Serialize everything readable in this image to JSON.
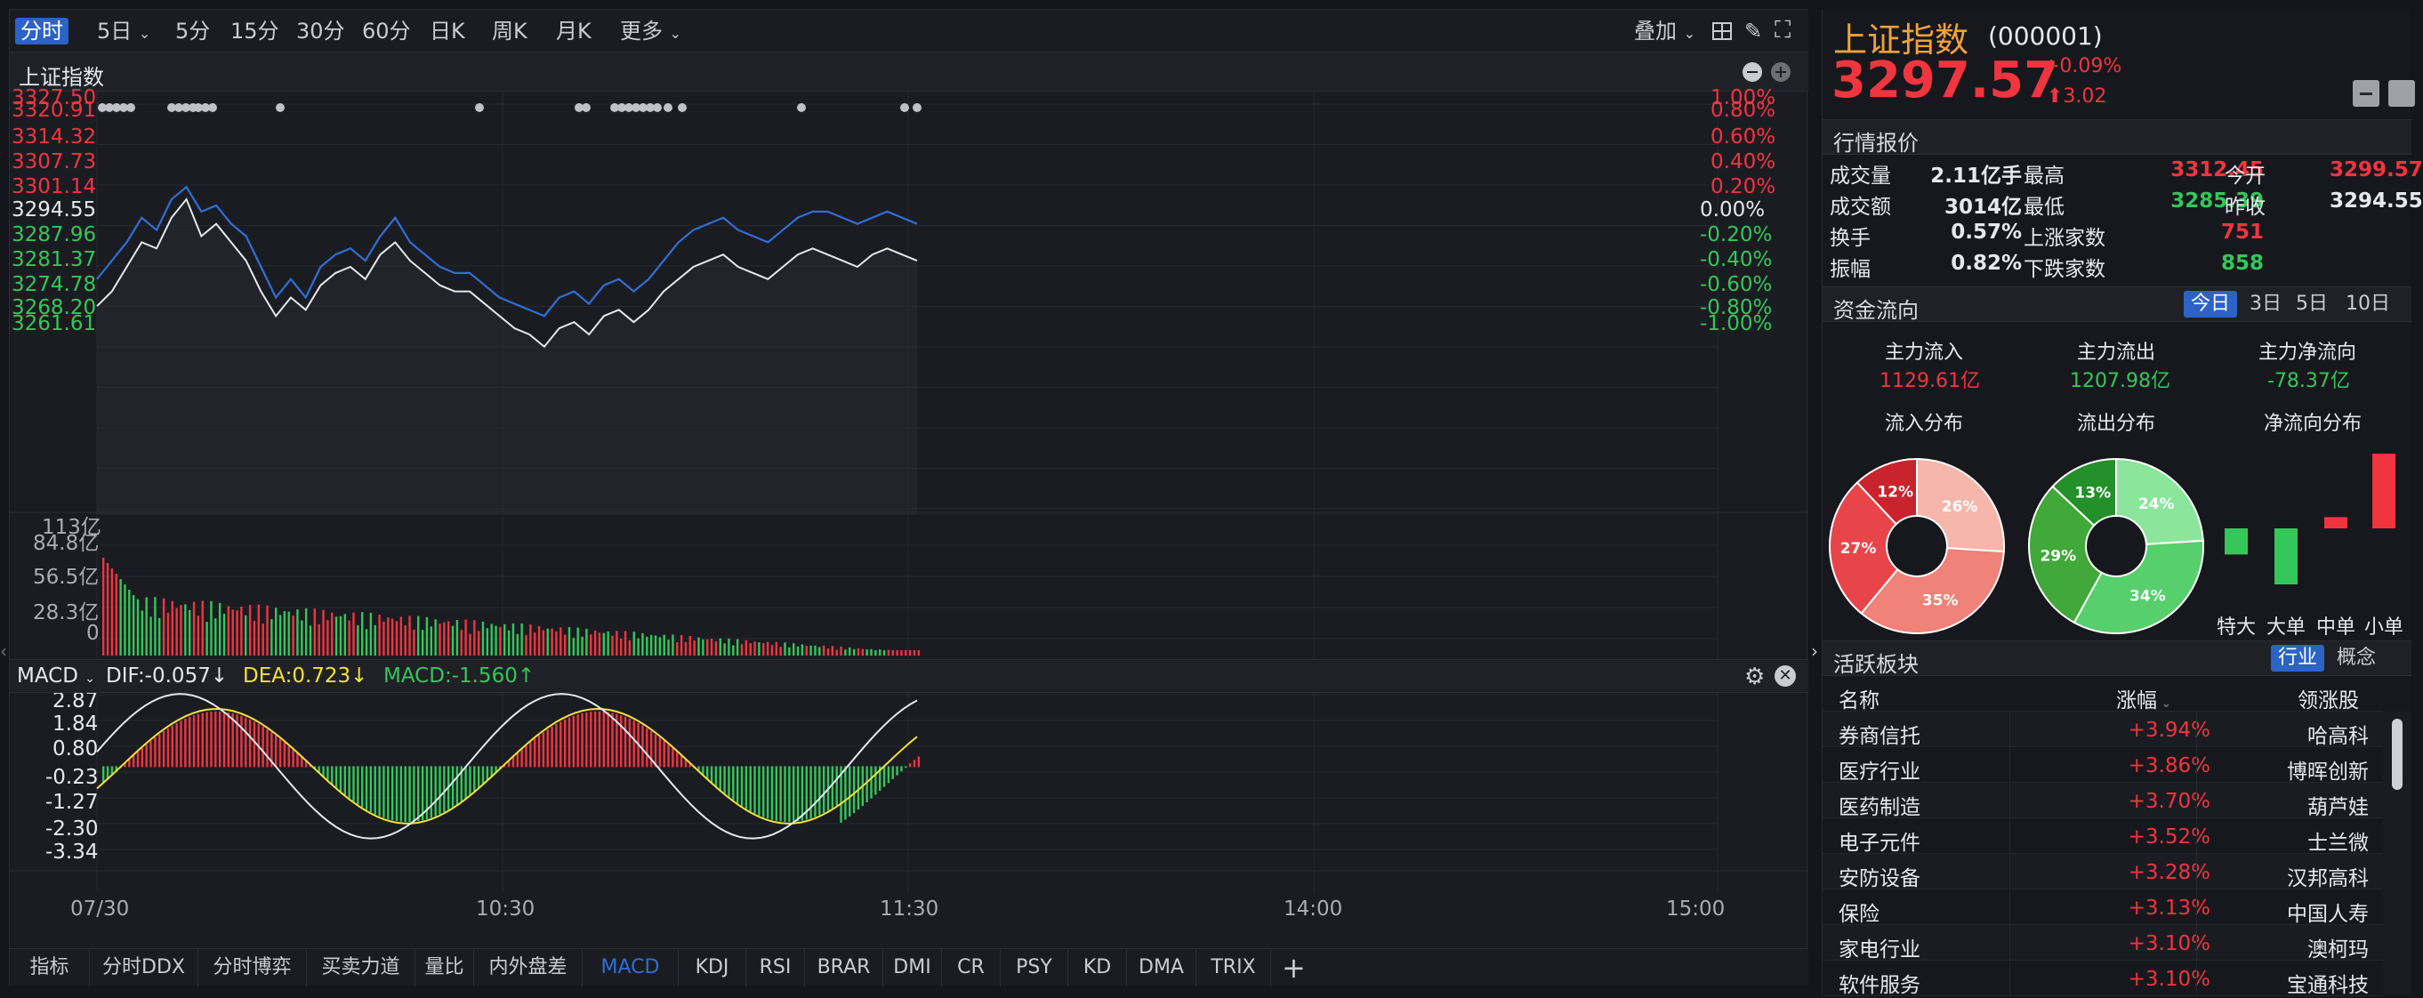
{
  "toolbar": {
    "timeframes": [
      "分时",
      "5日",
      "5分",
      "15分",
      "30分",
      "60分",
      "日K",
      "周K",
      "月K",
      "更多"
    ],
    "active": "分时",
    "overlay_label": "叠加"
  },
  "index": {
    "name": "上证指数"
  },
  "price_axis": {
    "left": [
      "3327.50",
      "3320.91",
      "3314.32",
      "3307.73",
      "3301.14",
      "3294.55",
      "3287.96",
      "3281.37",
      "3274.78",
      "3268.20",
      "3261.61"
    ],
    "right": [
      "1.00%",
      "0.80%",
      "0.60%",
      "0.40%",
      "0.20%",
      "0.00%",
      "-0.20%",
      "-0.40%",
      "-0.60%",
      "-0.80%",
      "-1.00%"
    ]
  },
  "volume_axis": [
    "113亿",
    "84.8亿",
    "56.5亿",
    "28.3亿",
    "0"
  ],
  "macd": {
    "label": "MACD",
    "dif": "DIF:-0.057↓",
    "dea": "DEA:0.723↓",
    "macd": "MACD:-1.560↑",
    "axis": [
      "2.87",
      "1.84",
      "0.80",
      "-0.23",
      "-1.27",
      "-2.30",
      "-3.34"
    ]
  },
  "time_axis": [
    "07/30",
    "10:30",
    "11:30",
    "14:00",
    "15:00"
  ],
  "bottom_tabs": [
    "指标",
    "分时DDX",
    "分时博弈",
    "买卖力道",
    "量比",
    "内外盘差",
    "MACD",
    "KDJ",
    "RSI",
    "BRAR",
    "DMI",
    "CR",
    "PSY",
    "KD",
    "DMA",
    "TRIX"
  ],
  "active_tab": "MACD",
  "quote": {
    "name": "上证指数",
    "code": "(000001)",
    "price": "3297.57",
    "change_pct": "+0.09%",
    "change": "⬆3.02"
  },
  "market": {
    "title": "行情报价",
    "rows": [
      [
        [
          "成交量",
          "2.11亿手"
        ],
        [
          "最高",
          "3312.45"
        ],
        [
          "今开",
          "3299.57"
        ]
      ],
      [
        [
          "成交额",
          "3014亿"
        ],
        [
          "最低",
          "3285.39"
        ],
        [
          "昨收",
          "3294.55"
        ]
      ],
      [
        [
          "换手",
          "0.57%"
        ],
        [
          "上涨家数",
          "751"
        ],
        [
          "",
          ""
        ]
      ],
      [
        [
          "振幅",
          "0.82%"
        ],
        [
          "下跌家数",
          "858"
        ],
        [
          "",
          ""
        ]
      ]
    ]
  },
  "capital": {
    "title": "资金流向",
    "periods": [
      "今日",
      "3日",
      "5日",
      "10日"
    ],
    "inflow_label": "主力流入",
    "inflow": "1129.61亿",
    "outflow_label": "主力流出",
    "outflow": "1207.98亿",
    "net_label": "主力净流向",
    "net": "-78.37亿",
    "dist_in": "流入分布",
    "dist_out": "流出分布",
    "dist_net": "净流向分布",
    "pie_in": [
      {
        "label": "26%",
        "value": 26,
        "color": "#f6b6ab"
      },
      {
        "label": "35%",
        "value": 35,
        "color": "#f0827a"
      },
      {
        "label": "27%",
        "value": 27,
        "color": "#e8454a"
      },
      {
        "label": "12%",
        "value": 12,
        "color": "#c9232d"
      }
    ],
    "pie_out": [
      {
        "label": "24%",
        "value": 24,
        "color": "#8be59b"
      },
      {
        "label": "34%",
        "value": 34,
        "color": "#57cf6c"
      },
      {
        "label": "29%",
        "value": 29,
        "color": "#41a83a"
      },
      {
        "label": "13%",
        "value": 13,
        "color": "#23902a"
      }
    ],
    "net_bars": [
      {
        "label": "特大",
        "value": -0.35,
        "color": "#34c759"
      },
      {
        "label": "大单",
        "value": -0.75,
        "color": "#34c759"
      },
      {
        "label": "中单",
        "value": 0.15,
        "color": "#f0353f"
      },
      {
        "label": "小单",
        "value": 1.0,
        "color": "#f0353f"
      }
    ]
  },
  "sectors": {
    "title": "活跃板块",
    "tabs": [
      "行业",
      "概念"
    ],
    "headers": [
      "名称",
      "涨幅",
      "领涨股"
    ],
    "rows": [
      [
        "券商信托",
        "+3.94%",
        "哈高科"
      ],
      [
        "医疗行业",
        "+3.86%",
        "博晖创新"
      ],
      [
        "医药制造",
        "+3.70%",
        "葫芦娃"
      ],
      [
        "电子元件",
        "+3.52%",
        "士兰微"
      ],
      [
        "安防设备",
        "+3.28%",
        "汉邦高科"
      ],
      [
        "保险",
        "+3.13%",
        "中国人寿"
      ],
      [
        "家电行业",
        "+3.10%",
        "澳柯玛"
      ],
      [
        "软件服务",
        "+3.10%",
        "宝通科技"
      ]
    ]
  }
}
